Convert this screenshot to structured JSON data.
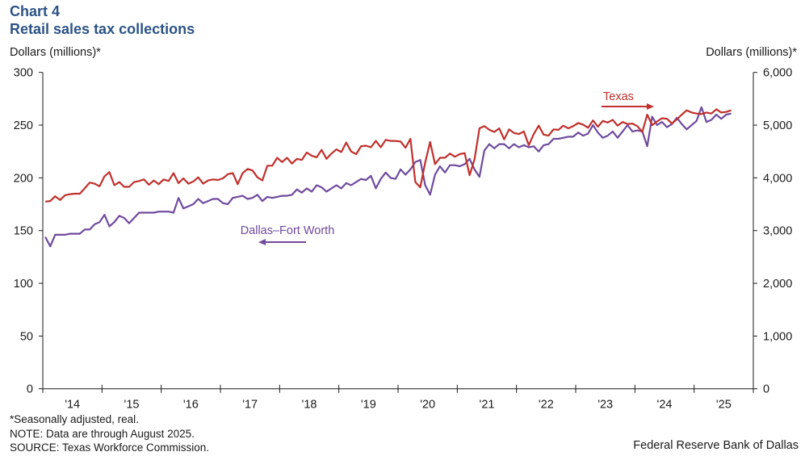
{
  "header": {
    "chart_number": "Chart 4",
    "title": "Retail sales tax collections"
  },
  "footer": {
    "note1": "*Seasonally adjusted, real.",
    "note2": "NOTE: Data are through August 2025.",
    "source": "SOURCE: Texas Workforce Commission.",
    "credit": "Federal Reserve Bank of Dallas"
  },
  "colors": {
    "title": "#2c5386",
    "texas": "#c0302c",
    "dfw": "#6f4a9e",
    "axis": "#1a1a1a"
  },
  "chart_data": {
    "type": "line",
    "title": "Retail sales tax collections",
    "subtitle": "Chart 4",
    "xlabel": "",
    "ylabel": "Dollars (millions)*",
    "ylabel_right": "Dollars (millions)*",
    "ylim": [
      0,
      300
    ],
    "ylim_right": [
      0,
      6000
    ],
    "yticks": [
      "0",
      "50",
      "100",
      "150",
      "200",
      "250",
      "300"
    ],
    "yticks_right": [
      "0",
      "1,000",
      "2,000",
      "3,000",
      "4,000",
      "5,000",
      "6,000"
    ],
    "xticks": [
      "'14",
      "'15",
      "'16",
      "'17",
      "'18",
      "'19",
      "'20",
      "'21",
      "'22",
      "'23",
      "'24",
      "'25"
    ],
    "x_start": "2014-01",
    "x_end": "2025-08",
    "frequency": "monthly",
    "x_range_years": [
      2014,
      2026
    ],
    "grid": false,
    "legend": "inline labels with arrows",
    "series": [
      {
        "name": "Dallas–Fort Worth",
        "axis": "left",
        "arrow": "left",
        "values": [
          144,
          135,
          146,
          146,
          146,
          147,
          147,
          147,
          151,
          151,
          156,
          158,
          165,
          154,
          158,
          164,
          162,
          157,
          162,
          167,
          167,
          167,
          167,
          168,
          168,
          168,
          167,
          181,
          171,
          173,
          175,
          180,
          176,
          178,
          180,
          180,
          176,
          175,
          181,
          182,
          183,
          180,
          181,
          184,
          178,
          182,
          181,
          182,
          183,
          183,
          184,
          189,
          186,
          190,
          187,
          193,
          191,
          187,
          190,
          193,
          190,
          195,
          193,
          196,
          199,
          198,
          202,
          190,
          199,
          205,
          200,
          199,
          208,
          203,
          208,
          215,
          217,
          193,
          184,
          203,
          211,
          205,
          212,
          212,
          211,
          213,
          218,
          208,
          201,
          226,
          232,
          228,
          232,
          232,
          228,
          232,
          229,
          231,
          229,
          230,
          225,
          231,
          232,
          237,
          237,
          238,
          239,
          239,
          243,
          240,
          242,
          250,
          243,
          238,
          240,
          244,
          238,
          244,
          250,
          244,
          245,
          244,
          230,
          258,
          250,
          253,
          248,
          251,
          257,
          251,
          246,
          250,
          254,
          267,
          253,
          255,
          260,
          256,
          260,
          261
        ]
      },
      {
        "name": "Texas",
        "axis": "right",
        "arrow": "right",
        "values": [
          3550,
          3560,
          3650,
          3580,
          3670,
          3690,
          3700,
          3700,
          3800,
          3910,
          3890,
          3840,
          4030,
          4110,
          3860,
          3920,
          3830,
          3830,
          3920,
          3940,
          3970,
          3870,
          3950,
          3880,
          3970,
          3940,
          4090,
          3900,
          3990,
          3890,
          3930,
          4010,
          3890,
          3950,
          3970,
          3960,
          3990,
          4070,
          4090,
          3880,
          4090,
          4170,
          4140,
          4010,
          3950,
          4230,
          4230,
          4380,
          4300,
          4380,
          4270,
          4360,
          4340,
          4480,
          4420,
          4390,
          4530,
          4360,
          4460,
          4540,
          4490,
          4670,
          4500,
          4450,
          4600,
          4610,
          4580,
          4700,
          4580,
          4720,
          4700,
          4700,
          4690,
          4570,
          4740,
          3920,
          3820,
          4290,
          4680,
          4260,
          4380,
          4380,
          4460,
          4400,
          4450,
          4470,
          4050,
          4350,
          4940,
          4980,
          4910,
          4870,
          4940,
          4730,
          4920,
          4850,
          4830,
          4880,
          4620,
          4830,
          4990,
          4820,
          4800,
          4920,
          4910,
          4990,
          4940,
          4980,
          5040,
          5010,
          4950,
          5090,
          4970,
          5080,
          5050,
          5100,
          4990,
          5060,
          5020,
          5030,
          4980,
          4870,
          5200,
          5000,
          5070,
          5130,
          5120,
          5030,
          5110,
          5200,
          5280,
          5240,
          5220,
          5210,
          5240,
          5220,
          5300,
          5240,
          5250,
          5280
        ]
      }
    ]
  }
}
